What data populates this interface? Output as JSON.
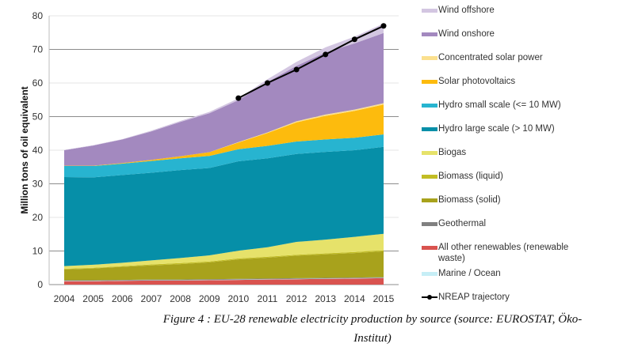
{
  "chart_data": {
    "type": "area",
    "stacked": true,
    "title": "",
    "xlabel": "",
    "ylabel": "Million tons of oil equivalent",
    "ylim": [
      0,
      80
    ],
    "yticks": [
      0,
      10,
      20,
      30,
      40,
      50,
      60,
      70,
      80
    ],
    "grid": true,
    "legend_position": "right",
    "categories": [
      "2004",
      "2005",
      "2006",
      "2007",
      "2008",
      "2009",
      "2010",
      "2011",
      "2012",
      "2013",
      "2014",
      "2015"
    ],
    "series": [
      {
        "name": "All other renewables (renewable waste)",
        "color": "#d9534f",
        "values": [
          1.0,
          1.0,
          1.1,
          1.2,
          1.2,
          1.3,
          1.4,
          1.5,
          1.6,
          1.7,
          1.8,
          1.9
        ]
      },
      {
        "name": "Marine / Ocean",
        "color": "#c6eef6",
        "values": [
          0.1,
          0.1,
          0.1,
          0.1,
          0.1,
          0.1,
          0.1,
          0.1,
          0.1,
          0.1,
          0.1,
          0.1
        ]
      },
      {
        "name": "Geothermal",
        "color": "#808080",
        "values": [
          0.2,
          0.2,
          0.2,
          0.2,
          0.2,
          0.2,
          0.2,
          0.2,
          0.2,
          0.2,
          0.2,
          0.2
        ]
      },
      {
        "name": "Biomass (solid)",
        "color": "#a8a21c",
        "values": [
          3.2,
          3.5,
          3.9,
          4.2,
          4.6,
          5.0,
          5.8,
          6.2,
          6.7,
          7.0,
          7.3,
          7.7
        ]
      },
      {
        "name": "Biomass (liquid)",
        "color": "#c2bd25",
        "values": [
          0.2,
          0.2,
          0.2,
          0.3,
          0.3,
          0.3,
          0.3,
          0.3,
          0.3,
          0.3,
          0.3,
          0.3
        ]
      },
      {
        "name": "Biogas",
        "color": "#e6e26a",
        "values": [
          0.8,
          0.9,
          1.0,
          1.2,
          1.5,
          1.8,
          2.3,
          2.8,
          3.8,
          4.1,
          4.5,
          4.9
        ]
      },
      {
        "name": "Hydro large scale (> 10 MW)",
        "color": "#068fa8",
        "values": [
          26.5,
          26.0,
          26.1,
          26.1,
          26.2,
          26.0,
          26.6,
          26.5,
          26.2,
          26.1,
          25.8,
          25.9
        ]
      },
      {
        "name": "Hydro small scale (<= 10 MW)",
        "color": "#27b4d0",
        "values": [
          3.3,
          3.4,
          3.4,
          3.5,
          3.5,
          3.6,
          3.6,
          3.7,
          3.7,
          3.7,
          3.7,
          3.7
        ]
      },
      {
        "name": "Solar photovoltaics",
        "color": "#fdbb0d",
        "values": [
          0.1,
          0.1,
          0.2,
          0.3,
          0.6,
          1.1,
          2.0,
          3.8,
          5.7,
          7.0,
          8.0,
          8.9
        ]
      },
      {
        "name": "Concentrated solar power",
        "color": "#fbe08e",
        "values": [
          0.0,
          0.0,
          0.0,
          0.0,
          0.0,
          0.0,
          0.1,
          0.2,
          0.3,
          0.4,
          0.4,
          0.4
        ]
      },
      {
        "name": "Wind onshore",
        "color": "#a389bf",
        "values": [
          4.6,
          6.0,
          7.0,
          8.5,
          10.2,
          11.6,
          12.5,
          15.0,
          16.5,
          18.5,
          19.7,
          20.9
        ]
      },
      {
        "name": "Wind offshore",
        "color": "#d3c6e1",
        "values": [
          0.1,
          0.1,
          0.1,
          0.2,
          0.3,
          0.4,
          0.5,
          0.8,
          1.2,
          1.5,
          2.0,
          2.8
        ]
      }
    ],
    "line_series": {
      "name": "NREAP trajectory",
      "color": "#000000",
      "x": [
        "2010",
        "2011",
        "2012",
        "2013",
        "2014",
        "2015"
      ],
      "values": [
        55.5,
        60.0,
        64.0,
        68.5,
        73.0,
        77.0
      ]
    }
  },
  "legend": {
    "items": [
      {
        "label": "Wind offshore",
        "color": "#d3c6e1"
      },
      {
        "label": "Wind onshore",
        "color": "#a389bf"
      },
      {
        "label": "Concentrated solar power",
        "color": "#fbe08e"
      },
      {
        "label": "Solar photovoltaics",
        "color": "#fdbb0d"
      },
      {
        "label": "Hydro small scale (<= 10 MW)",
        "color": "#27b4d0"
      },
      {
        "label": "Hydro large scale (> 10 MW)",
        "color": "#068fa8"
      },
      {
        "label": "Biogas",
        "color": "#e6e26a"
      },
      {
        "label": "Biomass (liquid)",
        "color": "#c2bd25"
      },
      {
        "label": "Biomass (solid)",
        "color": "#a8a21c"
      },
      {
        "label": "Geothermal",
        "color": "#808080"
      },
      {
        "label": "All other renewables (renewable waste)",
        "color": "#d9534f"
      },
      {
        "label": "Marine / Ocean",
        "color": "#c6eef6"
      }
    ],
    "line_item": {
      "label": "NREAP trajectory",
      "color": "#000000"
    }
  },
  "caption": {
    "line1": "Figure 4 : EU-28 renewable electricity production by source (source: EUROSTAT, Öko-",
    "line2": "Institut)"
  }
}
